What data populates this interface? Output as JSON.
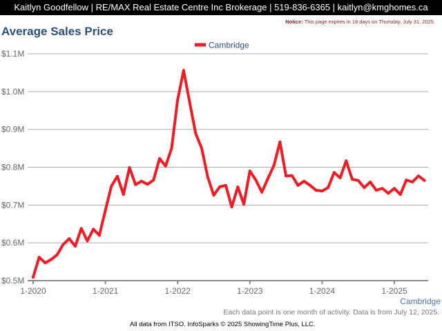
{
  "header": {
    "contact": "Kaitlyn Goodfellow | RE/MAX Real Estate Centre Inc Brokerage | 519-836-6365 | kaitlyn@kmghomes.ca"
  },
  "notice": {
    "label": "Notice:",
    "text": "This page expires in 18 days on Thursday, July 31, 2025."
  },
  "page_title": "Average Sales Price",
  "region_label": "Cambridge",
  "note": "Each data point is one month of activity. Data is from July 12, 2025.",
  "footer": "All data from ITSO. InfoSparks © 2025 ShowingTime Plus, LLC.",
  "chart_data": {
    "type": "line",
    "title": "Average Sales Price",
    "xlabel": "",
    "ylabel": "",
    "ylim": [
      500,
      1100
    ],
    "y_unit": "thousands CAD",
    "grid": true,
    "legend_position": "top-center",
    "yticks": [
      {
        "v": 500,
        "label": "$0.5M"
      },
      {
        "v": 600,
        "label": "$0.6M"
      },
      {
        "v": 700,
        "label": "$0.7M"
      },
      {
        "v": 800,
        "label": "$0.8M"
      },
      {
        "v": 900,
        "label": "$0.9M"
      },
      {
        "v": 1000,
        "label": "$1.0M"
      },
      {
        "v": 1100,
        "label": "$1.1M"
      }
    ],
    "xticks": [
      {
        "i": 0,
        "label": "1-2020"
      },
      {
        "i": 12,
        "label": "1-2021"
      },
      {
        "i": 24,
        "label": "1-2022"
      },
      {
        "i": 36,
        "label": "1-2023"
      },
      {
        "i": 48,
        "label": "1-2024"
      },
      {
        "i": 60,
        "label": "1-2025"
      }
    ],
    "x_start": "2020-01",
    "series": [
      {
        "name": "Cambridge",
        "color": "#ee1c25",
        "values": [
          509,
          562,
          547,
          556,
          569,
          596,
          611,
          591,
          638,
          605,
          636,
          620,
          686,
          750,
          776,
          728,
          799,
          754,
          763,
          755,
          766,
          823,
          803,
          850,
          978,
          1056,
          972,
          889,
          850,
          774,
          726,
          748,
          752,
          695,
          748,
          702,
          790,
          766,
          734,
          770,
          805,
          867,
          777,
          778,
          752,
          763,
          752,
          739,
          737,
          746,
          786,
          772,
          817,
          768,
          765,
          746,
          761,
          739,
          744,
          731,
          744,
          728,
          766,
          761,
          777,
          765
        ]
      }
    ]
  }
}
